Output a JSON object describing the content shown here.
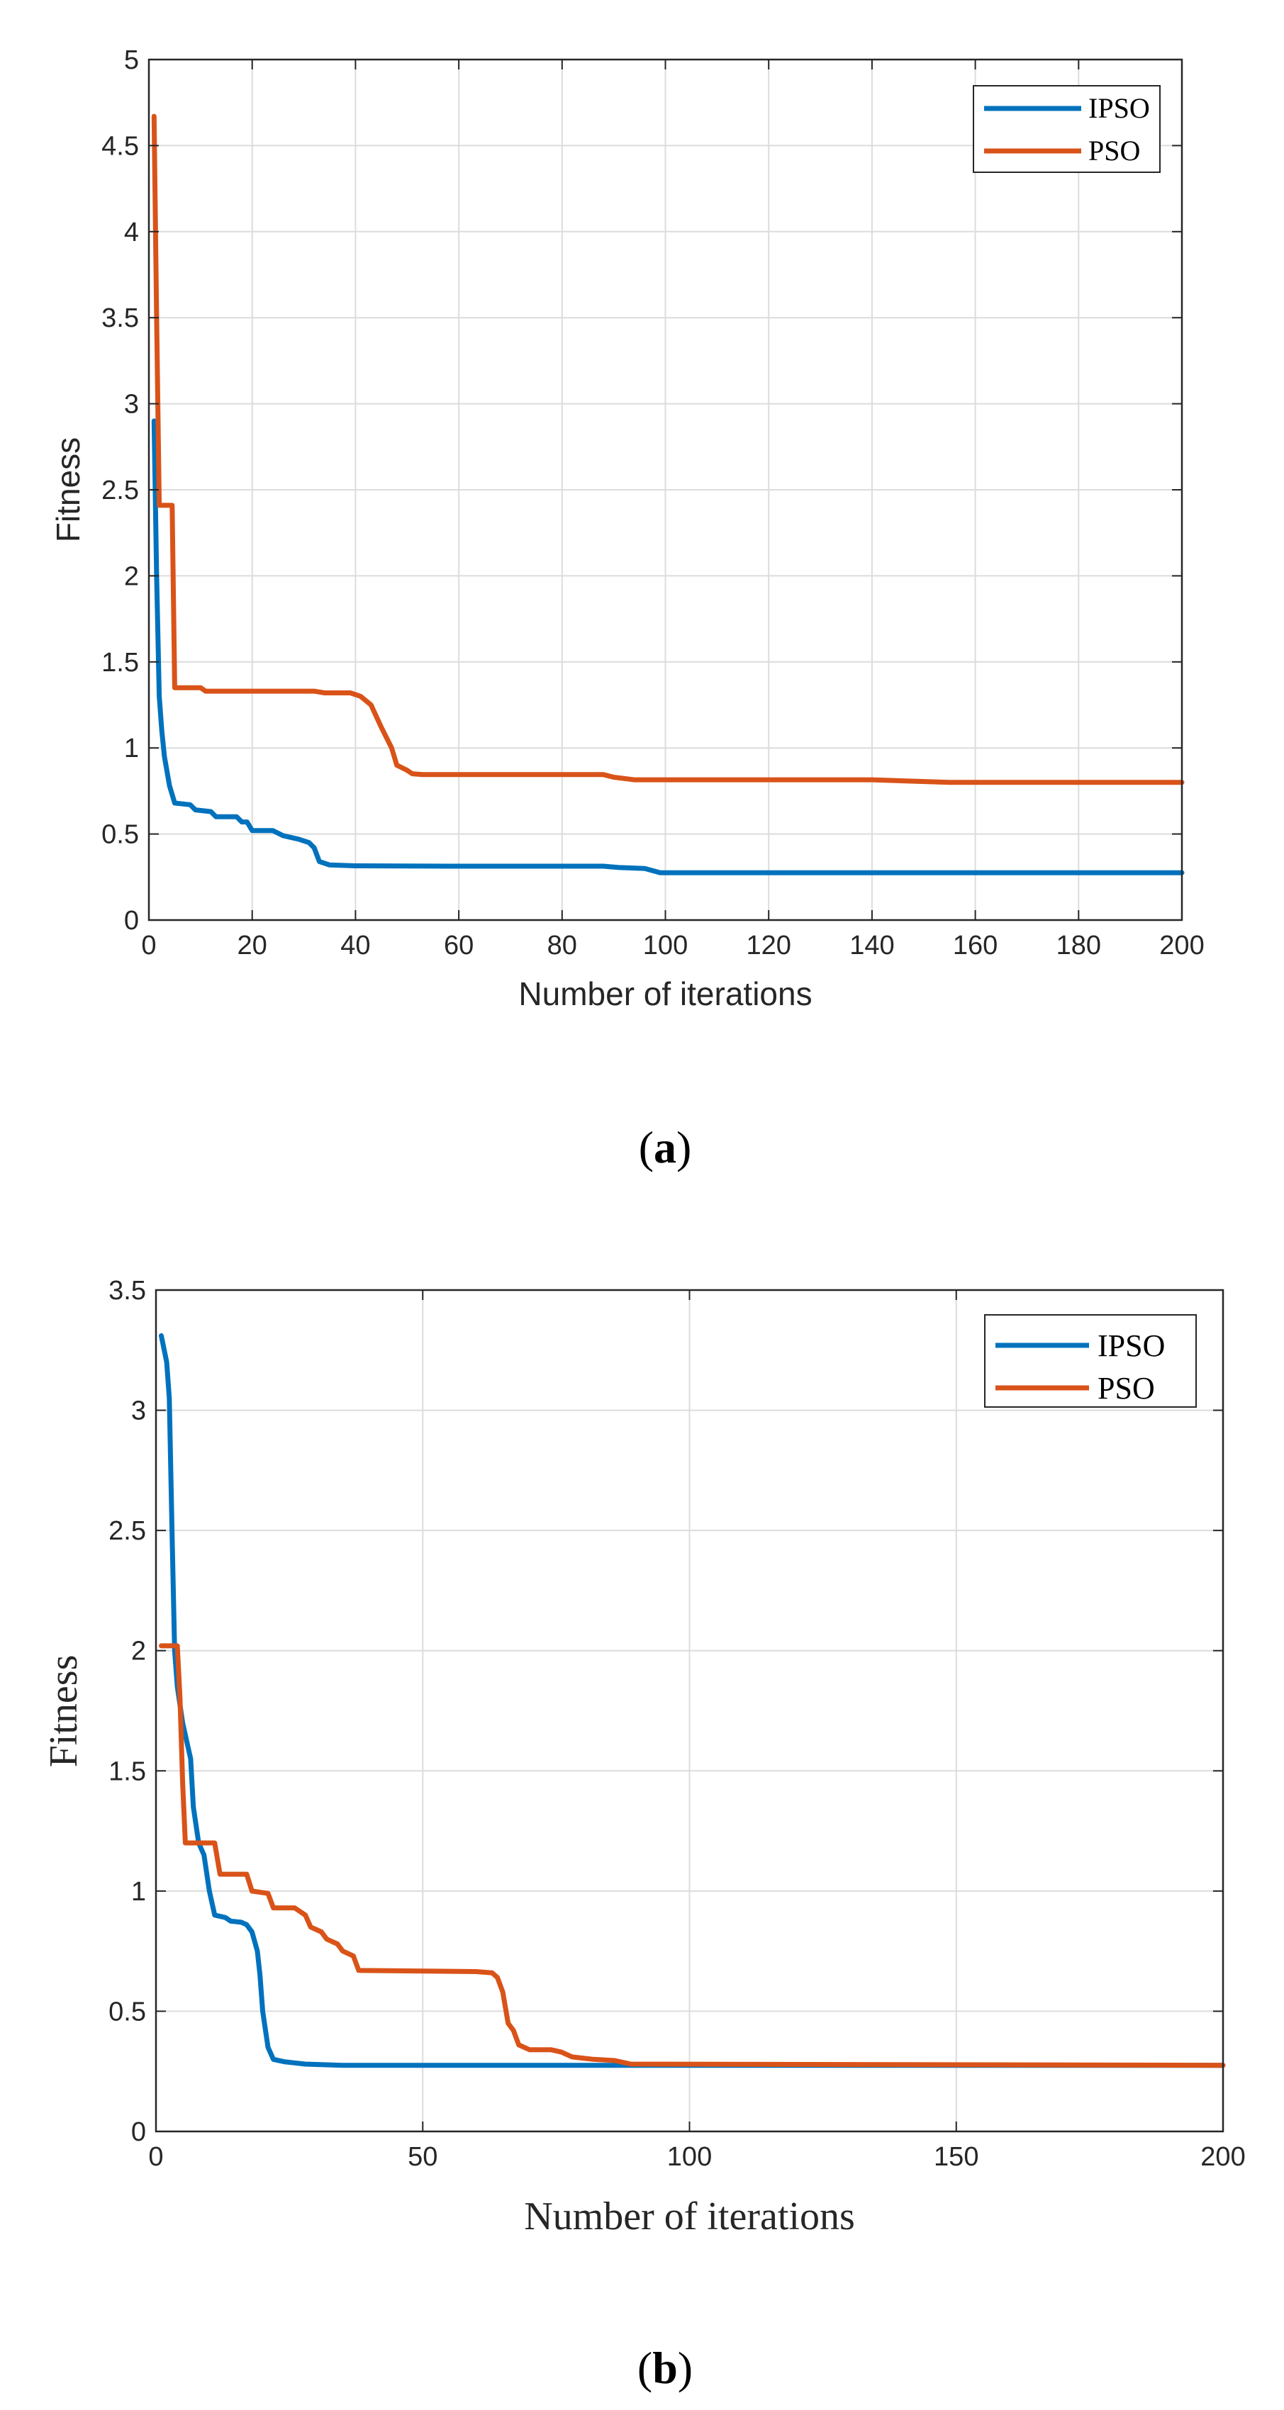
{
  "chart_data": [
    {
      "type": "line",
      "caption_open": "(",
      "caption_label": "a",
      "caption_close": ")",
      "xlabel": "Number of iterations",
      "ylabel": "Fitness",
      "xlim": [
        0,
        200
      ],
      "ylim": [
        0,
        5
      ],
      "xticks": [
        0,
        20,
        40,
        60,
        80,
        100,
        120,
        140,
        160,
        180,
        200
      ],
      "yticks": [
        0,
        0.5,
        1,
        1.5,
        2,
        2.5,
        3,
        3.5,
        4,
        4.5,
        5
      ],
      "grid": true,
      "legend_position": "top-right",
      "series": [
        {
          "name": "IPSO",
          "color": "#0072BD",
          "points": [
            [
              1,
              2.9
            ],
            [
              1.5,
              2.0
            ],
            [
              2,
              1.3
            ],
            [
              2.5,
              1.1
            ],
            [
              3,
              0.95
            ],
            [
              4,
              0.78
            ],
            [
              5,
              0.68
            ],
            [
              8,
              0.67
            ],
            [
              9,
              0.64
            ],
            [
              12,
              0.63
            ],
            [
              13,
              0.6
            ],
            [
              17,
              0.6
            ],
            [
              18,
              0.57
            ],
            [
              19,
              0.57
            ],
            [
              20,
              0.52
            ],
            [
              24,
              0.52
            ],
            [
              26,
              0.49
            ],
            [
              29,
              0.47
            ],
            [
              31,
              0.45
            ],
            [
              32,
              0.42
            ],
            [
              33,
              0.34
            ],
            [
              35,
              0.32
            ],
            [
              40,
              0.315
            ],
            [
              60,
              0.313
            ],
            [
              88,
              0.313
            ],
            [
              91,
              0.305
            ],
            [
              96,
              0.3
            ],
            [
              99,
              0.275
            ],
            [
              200,
              0.275
            ]
          ]
        },
        {
          "name": "PSO",
          "color": "#D95319",
          "points": [
            [
              1,
              4.67
            ],
            [
              1.5,
              3.5
            ],
            [
              2,
              2.41
            ],
            [
              4.5,
              2.41
            ],
            [
              5,
              1.35
            ],
            [
              10,
              1.35
            ],
            [
              11,
              1.33
            ],
            [
              32,
              1.33
            ],
            [
              34,
              1.32
            ],
            [
              39,
              1.32
            ],
            [
              41,
              1.3
            ],
            [
              43,
              1.25
            ],
            [
              45,
              1.12
            ],
            [
              47,
              1.0
            ],
            [
              48,
              0.9
            ],
            [
              50,
              0.87
            ],
            [
              51,
              0.85
            ],
            [
              53,
              0.845
            ],
            [
              88,
              0.845
            ],
            [
              90,
              0.83
            ],
            [
              94,
              0.815
            ],
            [
              140,
              0.815
            ],
            [
              155,
              0.8
            ],
            [
              200,
              0.8
            ]
          ]
        }
      ]
    },
    {
      "type": "line",
      "caption_open": "(",
      "caption_label": "b",
      "caption_close": ")",
      "xlabel": "Number of iterations",
      "ylabel": "Fitness",
      "xlim": [
        0,
        200
      ],
      "ylim": [
        0,
        3.5
      ],
      "xticks": [
        0,
        50,
        100,
        150,
        200
      ],
      "yticks": [
        0,
        0.5,
        1,
        1.5,
        2,
        2.5,
        3,
        3.5
      ],
      "grid": true,
      "legend_position": "top-right",
      "series": [
        {
          "name": "IPSO",
          "color": "#0072BD",
          "points": [
            [
              1,
              3.31
            ],
            [
              2,
              3.2
            ],
            [
              2.5,
              3.05
            ],
            [
              3,
              2.5
            ],
            [
              3.5,
              2.0
            ],
            [
              4,
              1.85
            ],
            [
              5,
              1.7
            ],
            [
              6,
              1.6
            ],
            [
              6.5,
              1.55
            ],
            [
              7,
              1.35
            ],
            [
              8,
              1.2
            ],
            [
              9,
              1.15
            ],
            [
              10,
              1.0
            ],
            [
              11,
              0.9
            ],
            [
              13,
              0.89
            ],
            [
              14,
              0.875
            ],
            [
              16,
              0.87
            ],
            [
              17,
              0.86
            ],
            [
              18,
              0.83
            ],
            [
              19,
              0.75
            ],
            [
              19.5,
              0.65
            ],
            [
              20,
              0.5
            ],
            [
              21,
              0.35
            ],
            [
              22,
              0.3
            ],
            [
              24,
              0.29
            ],
            [
              26,
              0.285
            ],
            [
              28,
              0.28
            ],
            [
              35,
              0.275
            ],
            [
              200,
              0.275
            ]
          ]
        },
        {
          "name": "PSO",
          "color": "#D95319",
          "points": [
            [
              1,
              2.02
            ],
            [
              4,
              2.02
            ],
            [
              4.5,
              1.8
            ],
            [
              5,
              1.45
            ],
            [
              5.5,
              1.2
            ],
            [
              11,
              1.2
            ],
            [
              12,
              1.07
            ],
            [
              17,
              1.07
            ],
            [
              18,
              1.0
            ],
            [
              21,
              0.99
            ],
            [
              22,
              0.93
            ],
            [
              26,
              0.93
            ],
            [
              28,
              0.9
            ],
            [
              29,
              0.85
            ],
            [
              31,
              0.83
            ],
            [
              32,
              0.8
            ],
            [
              34,
              0.78
            ],
            [
              35,
              0.75
            ],
            [
              37,
              0.73
            ],
            [
              38,
              0.67
            ],
            [
              60,
              0.665
            ],
            [
              63,
              0.66
            ],
            [
              64,
              0.64
            ],
            [
              65,
              0.58
            ],
            [
              66,
              0.45
            ],
            [
              67,
              0.42
            ],
            [
              68,
              0.36
            ],
            [
              70,
              0.34
            ],
            [
              74,
              0.34
            ],
            [
              76,
              0.33
            ],
            [
              78,
              0.31
            ],
            [
              82,
              0.3
            ],
            [
              86,
              0.295
            ],
            [
              89,
              0.28
            ],
            [
              200,
              0.275
            ]
          ]
        }
      ]
    }
  ]
}
